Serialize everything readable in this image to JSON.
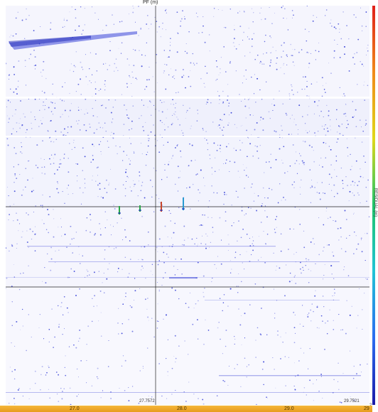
{
  "top_axis": {
    "label": "PF (m)"
  },
  "colorbar": {
    "label": "RESIDUAL (m)",
    "end_value": "2"
  },
  "cursor_readouts": {
    "left": "27.7572",
    "right": "29.7521"
  },
  "bottom_axis": {
    "ticks": [
      "27.0",
      "28.0",
      "29.0",
      "29"
    ]
  },
  "colors": {
    "speckle": "#3b45d8",
    "crosshair": "#222222",
    "axis_bar": "#f0a92c",
    "colorbar_stops": [
      "#1a1aa8",
      "#2d6cf0",
      "#22c3d6",
      "#1ec46a",
      "#e0d81a",
      "#f08a1a",
      "#e0201a"
    ]
  },
  "annotations": [
    {
      "name": "marker-1",
      "color": "#2aa84a"
    },
    {
      "name": "marker-2",
      "color": "#2aa84a"
    },
    {
      "name": "marker-3",
      "color": "#c8462a"
    },
    {
      "name": "marker-4",
      "color": "#2a9ad0"
    }
  ]
}
